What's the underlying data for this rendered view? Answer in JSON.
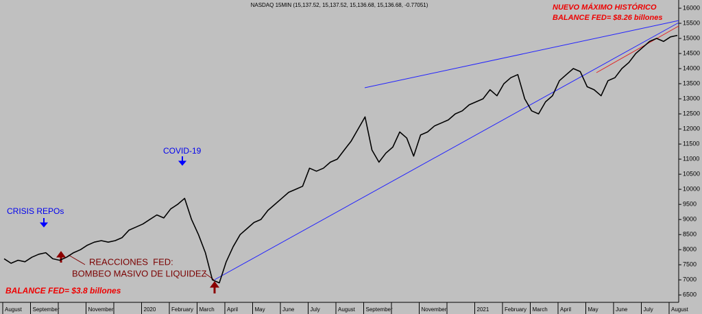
{
  "chart_data": {
    "type": "line",
    "title": "NASDAQ 15MIN (15,137.52, 15,137.52, 15,136.68, 15,136.68, -0.77051)",
    "categories": [
      "August",
      null,
      null,
      null,
      "September",
      null,
      null,
      null,
      null,
      null,
      null,
      null,
      "November",
      null,
      null,
      null,
      null,
      null,
      null,
      null,
      "2020",
      null,
      null,
      null,
      "February",
      null,
      null,
      null,
      "March",
      null,
      null,
      null,
      "April",
      null,
      null,
      null,
      "May",
      null,
      null,
      null,
      "June",
      null,
      null,
      null,
      "July",
      null,
      null,
      null,
      "August",
      null,
      null,
      null,
      "September",
      null,
      null,
      null,
      null,
      null,
      null,
      null,
      "November",
      null,
      null,
      null,
      null,
      null,
      null,
      null,
      "2021",
      null,
      null,
      null,
      "February",
      null,
      null,
      null,
      "March",
      null,
      null,
      null,
      "April",
      null,
      null,
      null,
      "May",
      null,
      null,
      null,
      "June",
      null,
      null,
      null,
      "July",
      null,
      null,
      null,
      "August",
      null
    ],
    "values": [
      7700,
      7550,
      7650,
      7600,
      7750,
      7850,
      7900,
      7700,
      7650,
      7750,
      7900,
      8000,
      8150,
      8250,
      8300,
      8250,
      8300,
      8400,
      8650,
      8750,
      8850,
      9000,
      9150,
      9050,
      9350,
      9500,
      9700,
      9000,
      8500,
      7900,
      7000,
      6900,
      7600,
      8100,
      8500,
      8700,
      8900,
      9000,
      9300,
      9500,
      9700,
      9900,
      10000,
      10100,
      10700,
      10600,
      10700,
      10900,
      11000,
      11300,
      11600,
      12000,
      12400,
      11300,
      10900,
      11200,
      11400,
      11900,
      11700,
      11100,
      11800,
      11900,
      12100,
      12200,
      12300,
      12500,
      12600,
      12800,
      12900,
      13000,
      13300,
      13100,
      13500,
      13700,
      13800,
      13000,
      12600,
      12500,
      12900,
      13100,
      13600,
      13800,
      14000,
      13900,
      13400,
      13300,
      13100,
      13600,
      13700,
      14000,
      14200,
      14500,
      14700,
      14900,
      15000,
      14900,
      15050,
      15100
    ],
    "color": "#000000",
    "ylim": [
      6300,
      16250
    ],
    "yticks": [
      6500,
      7000,
      7500,
      8000,
      8500,
      9000,
      9500,
      10000,
      10500,
      11000,
      11500,
      12000,
      12500,
      13000,
      13500,
      14000,
      14500,
      15000,
      15500,
      16000
    ],
    "annotations": [
      "CRISIS REPOs",
      "COVID-19",
      "REACCIONES  FED:",
      "BOMBEO MASIVO DE LIQUIDEZ",
      "BALANCE FED= $3.8 billones",
      "NUEVO MÁXIMO HISTÓRICO",
      "BALANCE FED= $8.26 billones"
    ]
  }
}
